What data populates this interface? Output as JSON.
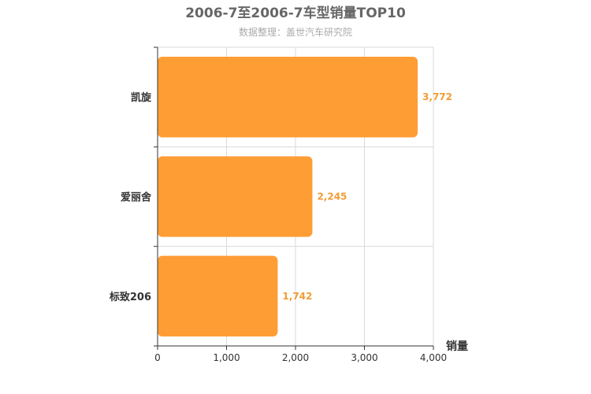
{
  "chart_data": {
    "type": "bar",
    "orientation": "horizontal",
    "title": "2006-7至2006-7车型销量TOP10",
    "subtitle": "数据整理：盖世汽车研究院",
    "categories": [
      "凯旋",
      "爱丽舍",
      "标致206"
    ],
    "values": [
      3772,
      2245,
      1742
    ],
    "value_labels": [
      "3,772",
      "2,245",
      "1,742"
    ],
    "xlabel": "销量",
    "xlim": [
      0,
      4000
    ],
    "x_ticks": [
      0,
      1000,
      2000,
      3000,
      4000
    ],
    "x_tick_labels": [
      "0",
      "1,000",
      "2,000",
      "3,000",
      "4,000"
    ],
    "grid": true,
    "bar_color": "#ff9d35",
    "label_color": "#f39c34"
  }
}
